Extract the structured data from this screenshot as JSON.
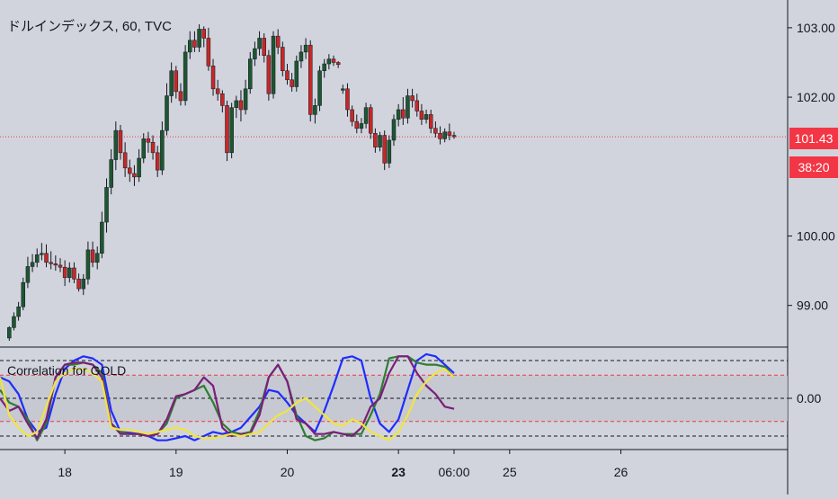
{
  "header": {
    "title": "ドルインデックス, 60, TVC"
  },
  "indicator": {
    "label": "Correlation for GOLD"
  },
  "price_labels": {
    "current": "101.43",
    "countdown": "38:20"
  },
  "colors": {
    "background": "#d1d4dc",
    "up_candle": "#1e5631",
    "down_candle": "#c62828",
    "wick": "#131722",
    "current_price_line": "#f23645",
    "axis_text": "#131722",
    "band_fill": "#c3c6ce",
    "series_blue": "#1f2cff",
    "series_green": "#2e7d32",
    "series_purple": "#7b1f7a",
    "series_yellow": "#f0e442"
  },
  "chart_data": [
    {
      "type": "candlestick",
      "title": "ドルインデックス, 60, TVC",
      "y_ticks": [
        "103.00",
        "102.00",
        "101.43",
        "100.00",
        "99.00"
      ],
      "y_tick_values": [
        103.0,
        102.0,
        101.43,
        100.0,
        99.0
      ],
      "ylim": [
        98.4,
        103.4
      ],
      "x_ticks": [
        {
          "label": "18",
          "x": 12,
          "bold": false
        },
        {
          "label": "19",
          "x": 36,
          "bold": false
        },
        {
          "label": "20",
          "x": 60,
          "bold": false
        },
        {
          "label": "23",
          "x": 84,
          "bold": true
        },
        {
          "label": "06:00",
          "x": 96,
          "bold": false
        },
        {
          "label": "25",
          "x": 108,
          "bold": false
        },
        {
          "label": "26",
          "x": 132,
          "bold": false
        }
      ],
      "xlim": [
        -2,
        168
      ],
      "current_price": 101.43,
      "countdown": "38:20",
      "candles": [
        [
          0.0,
          98.53,
          98.7,
          98.49,
          98.68
        ],
        [
          1.0,
          98.68,
          98.9,
          98.64,
          98.84
        ],
        [
          2.0,
          98.84,
          99.05,
          98.78,
          98.98
        ],
        [
          3.0,
          98.98,
          99.4,
          98.93,
          99.33
        ],
        [
          4.0,
          99.33,
          99.7,
          99.25,
          99.56
        ],
        [
          5.0,
          99.56,
          99.74,
          99.48,
          99.62
        ],
        [
          6.0,
          99.62,
          99.82,
          99.55,
          99.73
        ],
        [
          7.0,
          99.73,
          99.9,
          99.65,
          99.75
        ],
        [
          8.0,
          99.75,
          99.88,
          99.55,
          99.62
        ],
        [
          9.0,
          99.62,
          99.78,
          99.52,
          99.6
        ],
        [
          10.0,
          99.6,
          99.72,
          99.5,
          99.58
        ],
        [
          11.0,
          99.58,
          99.68,
          99.48,
          99.55
        ],
        [
          12.0,
          99.55,
          99.65,
          99.28,
          99.4
        ],
        [
          13.0,
          99.4,
          99.62,
          99.33,
          99.54
        ],
        [
          14.0,
          99.54,
          99.62,
          99.32,
          99.38
        ],
        [
          15.0,
          99.38,
          99.46,
          99.2,
          99.24
        ],
        [
          16.0,
          99.24,
          99.45,
          99.15,
          99.38
        ],
        [
          17.0,
          99.38,
          99.92,
          99.3,
          99.8
        ],
        [
          18.0,
          99.8,
          99.92,
          99.55,
          99.62
        ],
        [
          19.0,
          99.62,
          99.85,
          99.52,
          99.75
        ],
        [
          20.0,
          99.75,
          100.35,
          99.68,
          100.2
        ],
        [
          21.0,
          100.2,
          100.83,
          100.05,
          100.7
        ],
        [
          22.0,
          100.7,
          101.25,
          100.6,
          101.1
        ],
        [
          23.0,
          101.1,
          101.65,
          100.95,
          101.52
        ],
        [
          24.0,
          101.52,
          101.6,
          101.1,
          101.2
        ],
        [
          25.0,
          101.2,
          101.35,
          100.85,
          100.98
        ],
        [
          26.0,
          100.98,
          101.1,
          100.78,
          100.9
        ],
        [
          27.0,
          100.9,
          101.02,
          100.72,
          100.85
        ],
        [
          28.0,
          100.85,
          101.25,
          100.78,
          101.12
        ],
        [
          29.0,
          101.12,
          101.48,
          101.05,
          101.4
        ],
        [
          30.0,
          101.4,
          101.5,
          101.2,
          101.35
        ],
        [
          31.0,
          101.35,
          101.45,
          101.1,
          101.2
        ],
        [
          32.0,
          101.2,
          101.3,
          100.85,
          100.95
        ],
        [
          33.0,
          100.95,
          101.65,
          100.88,
          101.52
        ],
        [
          34.0,
          101.52,
          102.2,
          101.45,
          102.02
        ],
        [
          35.0,
          102.02,
          102.5,
          101.92,
          102.38
        ],
        [
          36.0,
          102.38,
          102.45,
          101.98,
          102.08
        ],
        [
          37.0,
          102.08,
          102.2,
          101.88,
          101.95
        ],
        [
          38.0,
          101.95,
          102.75,
          101.88,
          102.65
        ],
        [
          39.0,
          102.65,
          102.95,
          102.55,
          102.82
        ],
        [
          40.0,
          102.82,
          102.95,
          102.65,
          102.72
        ],
        [
          41.0,
          102.72,
          103.05,
          102.65,
          102.98
        ],
        [
          42.0,
          102.98,
          103.02,
          102.72,
          102.85
        ],
        [
          43.0,
          102.85,
          103.0,
          102.38,
          102.45
        ],
        [
          44.0,
          102.45,
          102.55,
          102.02,
          102.12
        ],
        [
          45.0,
          102.12,
          102.25,
          101.95,
          102.05
        ],
        [
          46.0,
          102.05,
          102.1,
          101.78,
          101.88
        ],
        [
          47.0,
          101.88,
          101.95,
          101.08,
          101.2
        ],
        [
          48.0,
          101.2,
          101.92,
          101.12,
          101.85
        ],
        [
          49.0,
          101.85,
          102.02,
          101.7,
          101.95
        ],
        [
          50.0,
          101.95,
          102.1,
          101.65,
          101.82
        ],
        [
          51.0,
          101.82,
          102.25,
          101.75,
          102.12
        ],
        [
          52.0,
          102.12,
          102.65,
          102.05,
          102.55
        ],
        [
          53.0,
          102.55,
          102.8,
          102.45,
          102.7
        ],
        [
          54.0,
          102.7,
          102.95,
          102.6,
          102.85
        ],
        [
          55.0,
          102.85,
          102.92,
          102.5,
          102.6
        ],
        [
          56.0,
          102.6,
          102.68,
          101.95,
          102.05
        ],
        [
          57.0,
          102.05,
          102.95,
          101.98,
          102.88
        ],
        [
          58.0,
          102.88,
          102.98,
          102.62,
          102.72
        ],
        [
          59.0,
          102.72,
          102.8,
          102.3,
          102.38
        ],
        [
          60.0,
          102.38,
          102.48,
          102.18,
          102.25
        ],
        [
          61.0,
          102.25,
          102.35,
          102.08,
          102.15
        ],
        [
          62.0,
          102.15,
          102.6,
          102.08,
          102.52
        ],
        [
          63.0,
          102.52,
          102.75,
          102.42,
          102.65
        ],
        [
          64.0,
          102.65,
          102.85,
          102.55,
          102.75
        ],
        [
          65.0,
          102.75,
          102.82,
          101.65,
          101.75
        ],
        [
          66.0,
          101.75,
          101.98,
          101.62,
          101.88
        ],
        [
          67.0,
          101.88,
          102.45,
          101.8,
          102.38
        ],
        [
          68.0,
          102.38,
          102.55,
          102.28,
          102.48
        ],
        [
          69.0,
          102.48,
          102.62,
          102.4,
          102.55
        ],
        [
          70.0,
          102.55,
          102.6,
          102.45,
          102.5
        ],
        [
          71.0,
          102.5,
          102.52,
          102.42,
          102.47
        ],
        [
          72.0,
          102.1,
          102.18,
          102.05,
          102.12
        ],
        [
          73.0,
          102.12,
          102.2,
          101.72,
          101.82
        ],
        [
          74.0,
          101.82,
          101.88,
          101.58,
          101.65
        ],
        [
          75.0,
          101.65,
          101.75,
          101.48,
          101.55
        ],
        [
          76.0,
          101.55,
          101.7,
          101.48,
          101.62
        ],
        [
          77.0,
          101.62,
          101.92,
          101.55,
          101.85
        ],
        [
          78.0,
          101.85,
          101.9,
          101.4,
          101.48
        ],
        [
          79.0,
          101.48,
          101.55,
          101.2,
          101.28
        ],
        [
          80.0,
          101.28,
          101.5,
          101.22,
          101.45
        ],
        [
          81.0,
          101.45,
          101.52,
          100.95,
          101.05
        ],
        [
          82.0,
          101.05,
          101.45,
          100.98,
          101.38
        ],
        [
          83.0,
          101.38,
          101.75,
          101.3,
          101.68
        ],
        [
          84.0,
          101.68,
          101.9,
          101.58,
          101.82
        ],
        [
          85.0,
          101.82,
          102.0,
          101.6,
          101.7
        ],
        [
          86.0,
          101.7,
          102.12,
          101.62,
          102.02
        ],
        [
          87.0,
          102.02,
          102.12,
          101.85,
          101.95
        ],
        [
          88.0,
          101.95,
          102.05,
          101.72,
          101.8
        ],
        [
          89.0,
          101.8,
          101.9,
          101.6,
          101.68
        ],
        [
          90.0,
          101.68,
          101.82,
          101.62,
          101.75
        ],
        [
          91.0,
          101.75,
          101.82,
          101.48,
          101.55
        ],
        [
          92.0,
          101.55,
          101.65,
          101.42,
          101.48
        ],
        [
          93.0,
          101.48,
          101.58,
          101.32,
          101.4
        ],
        [
          94.0,
          101.4,
          101.55,
          101.35,
          101.5
        ],
        [
          95.0,
          101.5,
          101.62,
          101.38,
          101.45
        ],
        [
          96.0,
          101.45,
          101.5,
          101.4,
          101.43
        ]
      ]
    },
    {
      "type": "line",
      "title": "Correlation for GOLD",
      "y_ticks": [
        "0.00"
      ],
      "y_tick_values": [
        0.0
      ],
      "ylim": [
        -1.22,
        1.22
      ],
      "reference_lines": [
        {
          "value": 0.9,
          "color": "#131722"
        },
        {
          "value": 0.55,
          "color": "#f23645"
        },
        {
          "value": 0.0,
          "color": "#131722"
        },
        {
          "value": -0.55,
          "color": "#f23645"
        },
        {
          "value": -0.9,
          "color": "#131722"
        }
      ],
      "band": [
        -0.55,
        0.55
      ],
      "series": [
        {
          "color": "#1f2cff",
          "x": [
            -2,
            0,
            2,
            4,
            6,
            8,
            10,
            12,
            14,
            16,
            18,
            20,
            22,
            24,
            26,
            28,
            30,
            32,
            34,
            36,
            38,
            40,
            42,
            44,
            46,
            48,
            50,
            52,
            54,
            56,
            58,
            60,
            62,
            64,
            66,
            68,
            70,
            72,
            74,
            76,
            78,
            80,
            82,
            84,
            86,
            88,
            90,
            92,
            94,
            96
          ],
          "y": [
            0.5,
            0.4,
            0.1,
            -0.5,
            -0.8,
            -0.7,
            0.1,
            0.7,
            0.9,
            1.0,
            0.95,
            0.8,
            -0.3,
            -0.8,
            -0.82,
            -0.85,
            -0.9,
            -1.0,
            -1.0,
            -0.95,
            -0.9,
            -1.0,
            -0.9,
            -0.8,
            -0.85,
            -0.8,
            -0.7,
            -0.45,
            -0.2,
            0.2,
            0.15,
            -0.1,
            -0.4,
            -0.6,
            -0.8,
            -0.3,
            0.3,
            0.95,
            1.0,
            0.9,
            0.0,
            -0.6,
            -0.8,
            -0.5,
            0.2,
            0.9,
            1.05,
            1.0,
            0.8,
            0.6
          ]
        },
        {
          "color": "#2e7d32",
          "x": [
            -2,
            0,
            2,
            4,
            6,
            8,
            10,
            12,
            14,
            16,
            18,
            20,
            22,
            24,
            26,
            28,
            30,
            32,
            34,
            36,
            38,
            40,
            42,
            44,
            46,
            48,
            50,
            52,
            54,
            56,
            58,
            60,
            62,
            64,
            66,
            68,
            70,
            72,
            74,
            76,
            78,
            80,
            82,
            84,
            86,
            88,
            90,
            92,
            94,
            96
          ],
          "y": [
            0.2,
            -0.1,
            -0.2,
            -0.5,
            -1.0,
            -0.6,
            0.5,
            0.8,
            0.8,
            0.85,
            0.8,
            0.6,
            -0.6,
            -0.8,
            -0.85,
            -0.85,
            -0.9,
            -0.85,
            -0.6,
            0.0,
            0.1,
            0.2,
            0.3,
            -0.1,
            -0.6,
            -0.8,
            -0.85,
            -0.8,
            -0.3,
            0.5,
            0.8,
            0.4,
            -0.4,
            -0.9,
            -1.0,
            -0.95,
            -0.8,
            -0.85,
            -0.85,
            -0.85,
            -0.4,
            0.1,
            0.95,
            1.0,
            1.0,
            0.85,
            0.8,
            0.8,
            0.75,
            0.5
          ]
        },
        {
          "color": "#7b1f7a",
          "x": [
            -2,
            0,
            2,
            4,
            6,
            8,
            10,
            12,
            14,
            16,
            18,
            20,
            22,
            24,
            26,
            28,
            30,
            32,
            34,
            36,
            38,
            40,
            42,
            44,
            46,
            48,
            50,
            52,
            54,
            56,
            58,
            60,
            62,
            64,
            66,
            68,
            70,
            72,
            74,
            76,
            78,
            80,
            82,
            84,
            86,
            88,
            90,
            92,
            94,
            96
          ],
          "y": [
            0.0,
            -0.3,
            -0.2,
            -0.6,
            -0.95,
            -0.5,
            0.5,
            0.8,
            0.85,
            0.85,
            0.8,
            0.5,
            -0.6,
            -0.85,
            -0.85,
            -0.85,
            -0.9,
            -0.85,
            -0.5,
            0.05,
            0.1,
            0.2,
            0.5,
            0.3,
            -0.7,
            -0.9,
            -0.85,
            -0.85,
            -0.4,
            0.5,
            0.8,
            0.4,
            -0.5,
            -0.6,
            -0.85,
            -0.85,
            -0.8,
            -0.85,
            -0.9,
            -0.7,
            -0.2,
            0.0,
            0.6,
            1.0,
            1.0,
            0.6,
            0.3,
            0.1,
            -0.2,
            -0.25
          ]
        },
        {
          "color": "#f0e442",
          "x": [
            -2,
            0,
            2,
            4,
            6,
            8,
            10,
            12,
            14,
            16,
            18,
            20,
            22,
            24,
            26,
            28,
            30,
            32,
            34,
            36,
            38,
            40,
            42,
            44,
            46,
            48,
            50,
            52,
            54,
            56,
            58,
            60,
            62,
            64,
            66,
            68,
            70,
            72,
            74,
            76,
            78,
            80,
            82,
            84,
            86,
            88,
            90,
            92,
            94,
            96
          ],
          "y": [
            0.5,
            -0.4,
            -0.7,
            -0.9,
            -0.8,
            -0.2,
            0.4,
            0.6,
            0.7,
            0.7,
            0.6,
            0.4,
            -0.7,
            -0.75,
            -0.75,
            -0.8,
            -0.85,
            -0.8,
            -0.75,
            -0.7,
            -0.75,
            -0.9,
            -0.95,
            -0.95,
            -0.9,
            -0.85,
            -0.9,
            -0.85,
            -0.8,
            -0.6,
            -0.4,
            -0.3,
            -0.1,
            0.0,
            -0.2,
            -0.4,
            -0.6,
            -0.65,
            -0.5,
            -0.6,
            -0.8,
            -0.9,
            -1.0,
            -0.8,
            -0.4,
            0.1,
            0.4,
            0.6,
            0.7,
            0.5
          ]
        }
      ]
    }
  ]
}
